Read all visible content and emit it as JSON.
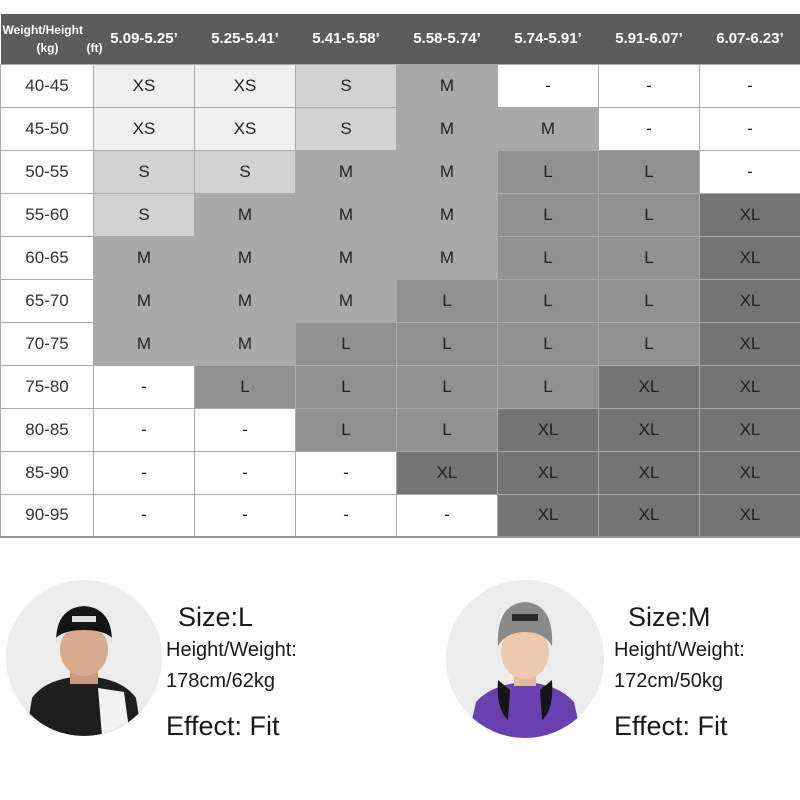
{
  "chart": {
    "corner_line1": "Weight/Height",
    "corner_unit_kg": "(kg)",
    "corner_unit_ft": "(ft)",
    "columns": [
      "5.09-5.25’",
      "5.25-5.41’",
      "5.41-5.58’",
      "5.58-5.74’",
      "5.74-5.91’",
      "5.91-6.07’",
      "6.07-6.23’"
    ],
    "rows": [
      {
        "weight": "40-45",
        "sizes": [
          "XS",
          "XS",
          "S",
          "M",
          "-",
          "-",
          "-"
        ]
      },
      {
        "weight": "45-50",
        "sizes": [
          "XS",
          "XS",
          "S",
          "M",
          "M",
          "-",
          "-"
        ]
      },
      {
        "weight": "50-55",
        "sizes": [
          "S",
          "S",
          "M",
          "M",
          "L",
          "L",
          "-"
        ]
      },
      {
        "weight": "55-60",
        "sizes": [
          "S",
          "M",
          "M",
          "M",
          "L",
          "L",
          "XL"
        ]
      },
      {
        "weight": "60-65",
        "sizes": [
          "M",
          "M",
          "M",
          "M",
          "L",
          "L",
          "XL"
        ]
      },
      {
        "weight": "65-70",
        "sizes": [
          "M",
          "M",
          "M",
          "L",
          "L",
          "L",
          "XL"
        ]
      },
      {
        "weight": "70-75",
        "sizes": [
          "M",
          "M",
          "L",
          "L",
          "L",
          "L",
          "XL"
        ]
      },
      {
        "weight": "75-80",
        "sizes": [
          "-",
          "L",
          "L",
          "L",
          "L",
          "XL",
          "XL"
        ]
      },
      {
        "weight": "80-85",
        "sizes": [
          "-",
          "-",
          "L",
          "L",
          "XL",
          "XL",
          "XL"
        ]
      },
      {
        "weight": "85-90",
        "sizes": [
          "-",
          "-",
          "-",
          "XL",
          "XL",
          "XL",
          "XL"
        ]
      },
      {
        "weight": "90-95",
        "sizes": [
          "-",
          "-",
          "-",
          "-",
          "XL",
          "XL",
          "XL"
        ]
      }
    ],
    "colors": {
      "header": "#5c5c5c",
      "XS": "#efefef",
      "S": "#d2d2d2",
      "M": "#a9a9a9",
      "L": "#909090",
      "XL": "#747474",
      "-": "#ffffff"
    }
  },
  "models": [
    {
      "size": "Size:L",
      "hw_label": "Height/Weight:",
      "hw_value": "178cm/62kg",
      "effect": "Effect: Fit"
    },
    {
      "size": "Size:M",
      "hw_label": "Height/Weight:",
      "hw_value": "172cm/50kg",
      "effect": "Effect: Fit"
    }
  ]
}
